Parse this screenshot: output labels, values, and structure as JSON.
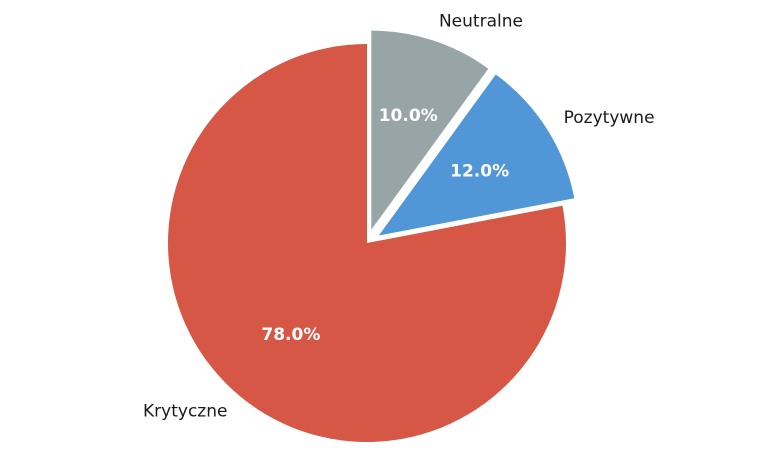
{
  "chart_data": {
    "type": "pie",
    "title": "",
    "slices": [
      {
        "label": "Neutralne",
        "value": 10.0,
        "pct_label": "10.0%",
        "color": "#98a5a6",
        "explode": true
      },
      {
        "label": "Pozytywne",
        "value": 12.0,
        "pct_label": "12.0%",
        "color": "#5197d8",
        "explode": true
      },
      {
        "label": "Krytyczne",
        "value": 78.0,
        "pct_label": "78.0%",
        "color": "#d65745",
        "explode": false
      }
    ],
    "start_angle_deg": 90,
    "direction": "clockwise",
    "legend": "none"
  }
}
